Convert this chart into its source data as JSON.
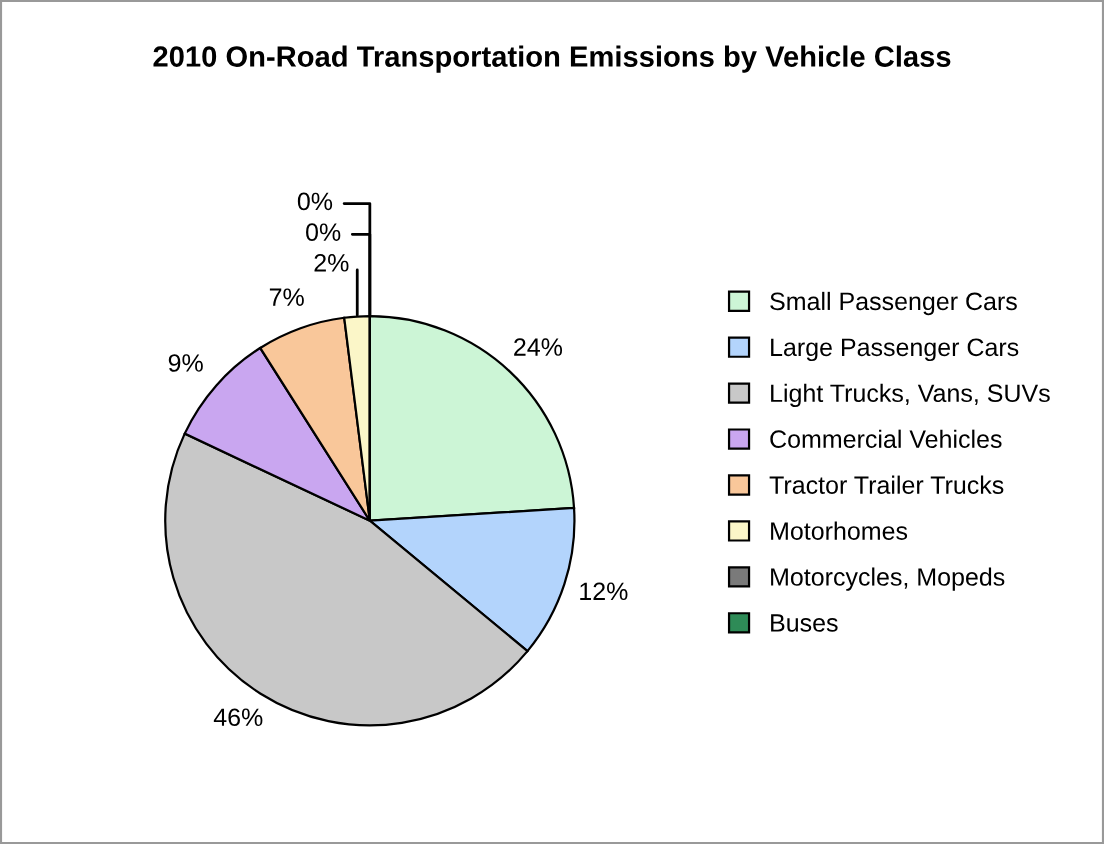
{
  "chart_data": {
    "type": "pie",
    "title": "2010 On-Road Transportation Emissions by Vehicle Class",
    "categories": [
      "Small Passenger Cars",
      "Large Passenger Cars",
      "Light Trucks, Vans, SUVs",
      "Commercial Vehicles",
      "Tractor Trailer Trucks",
      "Motorhomes",
      "Motorcycles, Mopeds",
      "Buses"
    ],
    "values": [
      24,
      12,
      46,
      9,
      7,
      2,
      0,
      0
    ],
    "colors": [
      "#ccf5d6",
      "#b3d4fc",
      "#c8c8c8",
      "#c9a6f0",
      "#f9c79a",
      "#fbf6c8",
      "#7a7a7a",
      "#2e8b57"
    ],
    "value_labels": [
      "24%",
      "12%",
      "46%",
      "9%",
      "7%",
      "2%",
      "0%",
      "0%"
    ],
    "legend": "right"
  }
}
